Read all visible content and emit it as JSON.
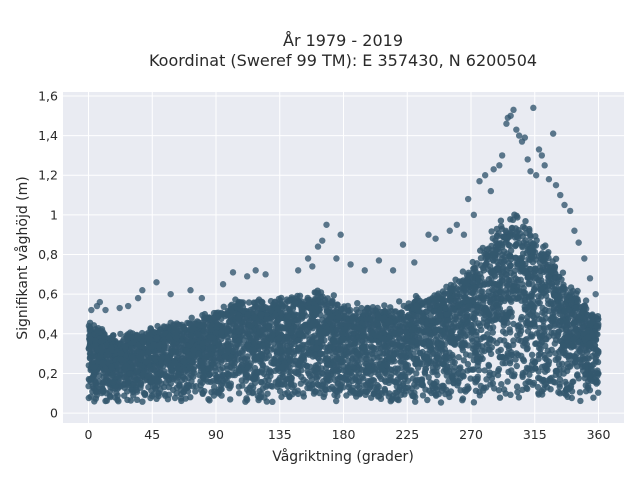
{
  "chart_data": {
    "type": "scatter",
    "title_line1": "År 1979 - 2019",
    "title_line2": "Koordinat (Sweref 99 TM): E 357430, N 6200504",
    "xlabel": "Vågriktning (grader)",
    "ylabel": "Signifikant våghöjd (m)",
    "xlim": [
      -18,
      378
    ],
    "ylim": [
      -0.05,
      1.62
    ],
    "x_ticks": [
      {
        "value": 0,
        "label": "0"
      },
      {
        "value": 45,
        "label": "45"
      },
      {
        "value": 90,
        "label": "90"
      },
      {
        "value": 135,
        "label": "135"
      },
      {
        "value": 180,
        "label": "180"
      },
      {
        "value": 225,
        "label": "225"
      },
      {
        "value": 270,
        "label": "270"
      },
      {
        "value": 315,
        "label": "315"
      },
      {
        "value": 360,
        "label": "360"
      }
    ],
    "y_ticks": [
      {
        "value": 0,
        "label": "0"
      },
      {
        "value": 0.2,
        "label": "0,2"
      },
      {
        "value": 0.4,
        "label": "0,4"
      },
      {
        "value": 0.6,
        "label": "0,6"
      },
      {
        "value": 0.8,
        "label": "0,8"
      },
      {
        "value": 1.0,
        "label": "1"
      },
      {
        "value": 1.2,
        "label": "1,2"
      },
      {
        "value": 1.4,
        "label": "1,4"
      },
      {
        "value": 1.6,
        "label": "1,6"
      }
    ],
    "grid": true,
    "marker_color": "#34586f",
    "plot_background": "#e9ebf2",
    "dense_envelope": [
      [
        0,
        0.48
      ],
      [
        20,
        0.4
      ],
      [
        45,
        0.44
      ],
      [
        60,
        0.47
      ],
      [
        90,
        0.52
      ],
      [
        100,
        0.58
      ],
      [
        135,
        0.6
      ],
      [
        160,
        0.64
      ],
      [
        180,
        0.58
      ],
      [
        200,
        0.55
      ],
      [
        225,
        0.58
      ],
      [
        250,
        0.64
      ],
      [
        270,
        0.78
      ],
      [
        285,
        0.95
      ],
      [
        300,
        1.05
      ],
      [
        315,
        0.95
      ],
      [
        330,
        0.8
      ],
      [
        345,
        0.62
      ],
      [
        360,
        0.5
      ]
    ],
    "dense_floor": 0.05,
    "outliers": [
      {
        "x": 2,
        "y": 0.52
      },
      {
        "x": 6,
        "y": 0.54
      },
      {
        "x": 8,
        "y": 0.56
      },
      {
        "x": 12,
        "y": 0.52
      },
      {
        "x": 22,
        "y": 0.53
      },
      {
        "x": 28,
        "y": 0.54
      },
      {
        "x": 35,
        "y": 0.58
      },
      {
        "x": 38,
        "y": 0.62
      },
      {
        "x": 48,
        "y": 0.66
      },
      {
        "x": 58,
        "y": 0.6
      },
      {
        "x": 72,
        "y": 0.62
      },
      {
        "x": 80,
        "y": 0.58
      },
      {
        "x": 95,
        "y": 0.65
      },
      {
        "x": 102,
        "y": 0.71
      },
      {
        "x": 112,
        "y": 0.69
      },
      {
        "x": 118,
        "y": 0.72
      },
      {
        "x": 125,
        "y": 0.7
      },
      {
        "x": 148,
        "y": 0.72
      },
      {
        "x": 155,
        "y": 0.78
      },
      {
        "x": 158,
        "y": 0.74
      },
      {
        "x": 162,
        "y": 0.84
      },
      {
        "x": 165,
        "y": 0.87
      },
      {
        "x": 168,
        "y": 0.95
      },
      {
        "x": 175,
        "y": 0.78
      },
      {
        "x": 178,
        "y": 0.9
      },
      {
        "x": 185,
        "y": 0.75
      },
      {
        "x": 195,
        "y": 0.72
      },
      {
        "x": 205,
        "y": 0.77
      },
      {
        "x": 215,
        "y": 0.72
      },
      {
        "x": 222,
        "y": 0.85
      },
      {
        "x": 230,
        "y": 0.76
      },
      {
        "x": 240,
        "y": 0.9
      },
      {
        "x": 245,
        "y": 0.88
      },
      {
        "x": 255,
        "y": 0.92
      },
      {
        "x": 260,
        "y": 0.95
      },
      {
        "x": 265,
        "y": 0.9
      },
      {
        "x": 268,
        "y": 1.08
      },
      {
        "x": 272,
        "y": 1.0
      },
      {
        "x": 276,
        "y": 1.17
      },
      {
        "x": 280,
        "y": 1.2
      },
      {
        "x": 284,
        "y": 1.12
      },
      {
        "x": 286,
        "y": 1.23
      },
      {
        "x": 290,
        "y": 1.25
      },
      {
        "x": 292,
        "y": 1.3
      },
      {
        "x": 295,
        "y": 1.46
      },
      {
        "x": 296,
        "y": 1.49
      },
      {
        "x": 298,
        "y": 1.5
      },
      {
        "x": 300,
        "y": 1.53
      },
      {
        "x": 302,
        "y": 1.43
      },
      {
        "x": 304,
        "y": 1.4
      },
      {
        "x": 306,
        "y": 1.37
      },
      {
        "x": 308,
        "y": 1.39
      },
      {
        "x": 310,
        "y": 1.28
      },
      {
        "x": 312,
        "y": 1.22
      },
      {
        "x": 314,
        "y": 1.54
      },
      {
        "x": 316,
        "y": 1.2
      },
      {
        "x": 318,
        "y": 1.33
      },
      {
        "x": 320,
        "y": 1.3
      },
      {
        "x": 322,
        "y": 1.25
      },
      {
        "x": 325,
        "y": 1.18
      },
      {
        "x": 328,
        "y": 1.41
      },
      {
        "x": 330,
        "y": 1.15
      },
      {
        "x": 333,
        "y": 1.1
      },
      {
        "x": 336,
        "y": 1.05
      },
      {
        "x": 340,
        "y": 1.02
      },
      {
        "x": 343,
        "y": 0.92
      },
      {
        "x": 346,
        "y": 0.86
      },
      {
        "x": 350,
        "y": 0.78
      },
      {
        "x": 354,
        "y": 0.68
      },
      {
        "x": 358,
        "y": 0.6
      }
    ]
  }
}
